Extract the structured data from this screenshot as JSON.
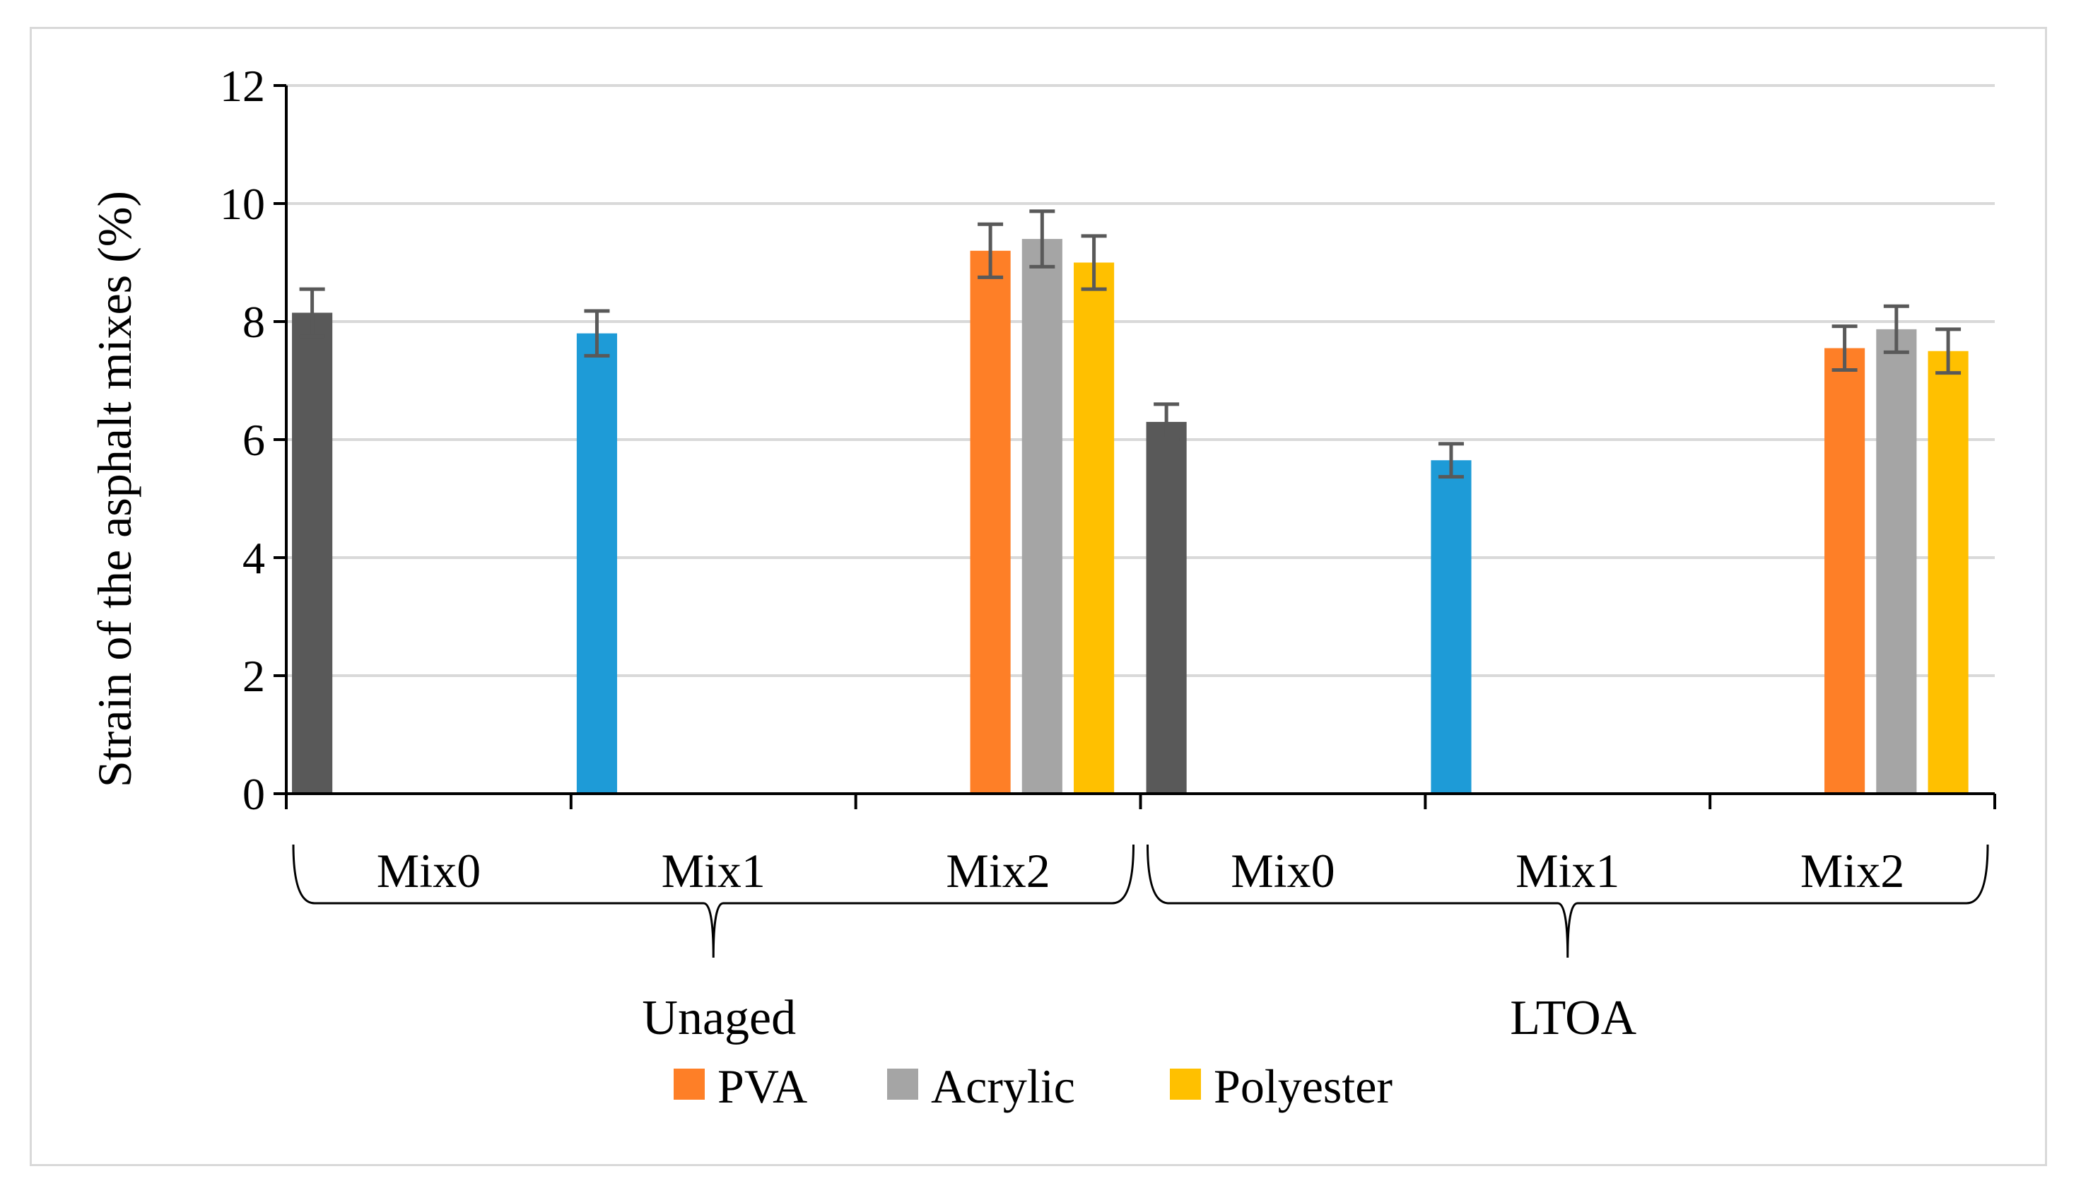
{
  "chart_data": {
    "type": "bar",
    "ylabel": "Strain of the asphalt mixes (%)",
    "xlabel": "",
    "ylim": [
      0,
      12
    ],
    "yticks": [
      0,
      2,
      4,
      6,
      8,
      10,
      12
    ],
    "grid": true,
    "legend_position": "bottom",
    "groups": [
      {
        "label": "Unaged",
        "subgroups": [
          {
            "label": "Mix0",
            "bars": [
              {
                "value": 8.15,
                "error": 0.4,
                "color": "#595959"
              }
            ]
          },
          {
            "label": "Mix1",
            "bars": [
              {
                "value": 7.8,
                "error": 0.38,
                "color": "#1e9bd7"
              }
            ]
          },
          {
            "label": "Mix2",
            "bars": [
              {
                "series": "PVA",
                "value": 9.2,
                "error": 0.45,
                "color": "#fe7f27"
              },
              {
                "series": "Acrylic",
                "value": 9.4,
                "error": 0.47,
                "color": "#a5a5a5"
              },
              {
                "series": "Polyester",
                "value": 9.0,
                "error": 0.45,
                "color": "#ffc000"
              }
            ]
          }
        ]
      },
      {
        "label": "LTOA",
        "subgroups": [
          {
            "label": "Mix0",
            "bars": [
              {
                "value": 6.3,
                "error": 0.3,
                "color": "#595959"
              }
            ]
          },
          {
            "label": "Mix1",
            "bars": [
              {
                "value": 5.65,
                "error": 0.28,
                "color": "#1e9bd7"
              }
            ]
          },
          {
            "label": "Mix2",
            "bars": [
              {
                "series": "PVA",
                "value": 7.55,
                "error": 0.37,
                "color": "#fe7f27"
              },
              {
                "series": "Acrylic",
                "value": 7.87,
                "error": 0.39,
                "color": "#a5a5a5"
              },
              {
                "series": "Polyester",
                "value": 7.5,
                "error": 0.37,
                "color": "#ffc000"
              }
            ]
          }
        ]
      }
    ],
    "legend": [
      {
        "name": "PVA",
        "color": "#fe7f27"
      },
      {
        "name": "Acrylic",
        "color": "#a5a5a5"
      },
      {
        "name": "Polyester",
        "color": "#ffc000"
      }
    ],
    "colors": {
      "gridline": "#d9d9d9",
      "axis": "#000000",
      "errorbar": "#595959"
    }
  }
}
